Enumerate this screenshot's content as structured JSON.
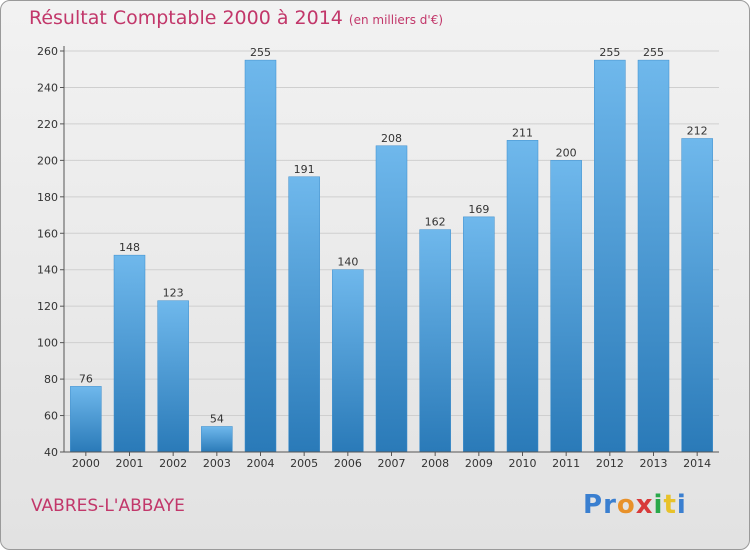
{
  "title": "Résultat Comptable 2000 à 2014",
  "title_unit": "(en milliers d'€)",
  "town": "VABRES-L'ABBAYE",
  "logo": {
    "text": "Proxiti",
    "colors": [
      "#3a7fd0",
      "#3a7fd0",
      "#e8912a",
      "#d83a3a",
      "#2aa84a",
      "#e8c22a",
      "#3a7fd0"
    ]
  },
  "colors": {
    "bar": "#4b9fdc",
    "bar_light": "#6fb8ec",
    "bar_dark": "#2a7ab8",
    "title": "#c2376a",
    "grid": "#cfcfcf"
  },
  "chart_data": {
    "type": "bar",
    "title": "Résultat Comptable 2000 à 2014",
    "xlabel": "",
    "ylabel": "(en milliers d'€)",
    "categories": [
      "2000",
      "2001",
      "2002",
      "2003",
      "2004",
      "2005",
      "2006",
      "2007",
      "2008",
      "2009",
      "2010",
      "2011",
      "2012",
      "2013",
      "2014"
    ],
    "values": [
      76,
      148,
      123,
      54,
      255,
      191,
      140,
      208,
      162,
      169,
      211,
      200,
      255,
      255,
      212
    ],
    "ylim": [
      40,
      260
    ],
    "yticks": [
      40,
      60,
      80,
      100,
      120,
      140,
      160,
      180,
      200,
      220,
      240,
      260
    ],
    "grid": true
  }
}
